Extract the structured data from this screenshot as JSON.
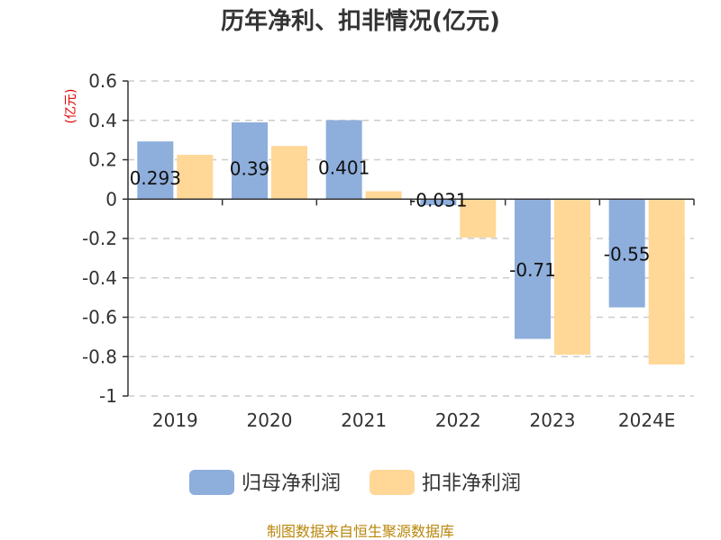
{
  "title": "历年净利、扣非情况(亿元)",
  "source": "制图数据来自恒生聚源数据库",
  "colors": {
    "series1": "#8eaedc",
    "series2": "#ffd797",
    "unit": "#e00000",
    "source": "#b8860b"
  },
  "chart_data": {
    "type": "bar",
    "title": "历年净利、扣非情况(亿元)",
    "ylabel": "(亿元)",
    "xlabel": "",
    "ylim": [
      -1,
      0.6
    ],
    "yticks": [
      "0.6",
      "0.4",
      "0.2",
      "0",
      "-0.2",
      "-0.4",
      "-0.6",
      "-0.8",
      "-1"
    ],
    "ytick_values": [
      0.6,
      0.4,
      0.2,
      0,
      -0.2,
      -0.4,
      -0.6,
      -0.8,
      -1
    ],
    "grid": true,
    "legend_position": "bottom",
    "categories": [
      "2019",
      "2020",
      "2021",
      "2022",
      "2023",
      "2024E"
    ],
    "series": [
      {
        "name": "归母净利润",
        "values": [
          0.293,
          0.39,
          0.401,
          -0.031,
          -0.71,
          -0.55
        ],
        "labels": [
          "0.293",
          "0.39",
          "0.401",
          "-0.031",
          "-0.71",
          "-0.55"
        ]
      },
      {
        "name": "扣非净利润",
        "values": [
          0.225,
          0.27,
          0.04,
          -0.195,
          -0.79,
          -0.84
        ]
      }
    ]
  }
}
